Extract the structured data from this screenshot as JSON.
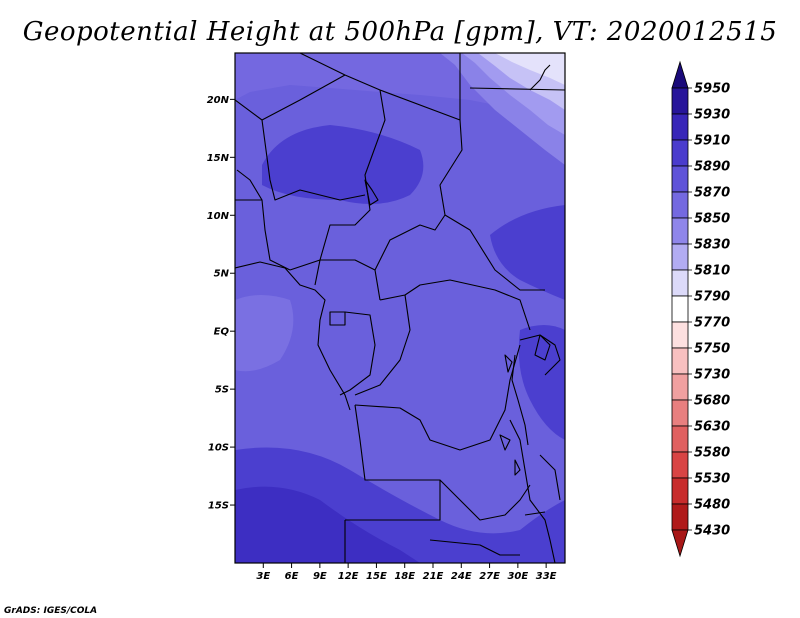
{
  "title": "Geopotential Height at 500hPa [gpm], VT: 2020012515",
  "credit": "GrADS: IGES/COLA",
  "map": {
    "lon_range": [
      0,
      35
    ],
    "lat_range": [
      -20,
      24
    ],
    "lon_ticks": [
      {
        "value": 3,
        "label": "3E"
      },
      {
        "value": 6,
        "label": "6E"
      },
      {
        "value": 9,
        "label": "9E"
      },
      {
        "value": 12,
        "label": "12E"
      },
      {
        "value": 15,
        "label": "15E"
      },
      {
        "value": 18,
        "label": "18E"
      },
      {
        "value": 21,
        "label": "21E"
      },
      {
        "value": 24,
        "label": "24E"
      },
      {
        "value": 27,
        "label": "27E"
      },
      {
        "value": 30,
        "label": "30E"
      },
      {
        "value": 33,
        "label": "33E"
      }
    ],
    "lat_ticks": [
      {
        "value": 20,
        "label": "20N"
      },
      {
        "value": 15,
        "label": "15N"
      },
      {
        "value": 10,
        "label": "10N"
      },
      {
        "value": 5,
        "label": "5N"
      },
      {
        "value": 0,
        "label": "EQ"
      },
      {
        "value": -5,
        "label": "5S"
      },
      {
        "value": -10,
        "label": "10S"
      },
      {
        "value": -15,
        "label": "15S"
      }
    ]
  },
  "colorbar": {
    "levels": [
      {
        "label": "5950",
        "color": "#1a0a7a"
      },
      {
        "label": "5930",
        "color": "#27159a"
      },
      {
        "label": "5910",
        "color": "#3826b8"
      },
      {
        "label": "5890",
        "color": "#4a3ccd"
      },
      {
        "label": "5870",
        "color": "#5f53d8"
      },
      {
        "label": "5850",
        "color": "#7469e0"
      },
      {
        "label": "5830",
        "color": "#8f86ea"
      },
      {
        "label": "5810",
        "color": "#b2acf2"
      },
      {
        "label": "5790",
        "color": "#dcdaf9"
      },
      {
        "label": "5770",
        "color": "#ffffff"
      },
      {
        "label": "5750",
        "color": "#fde0e0"
      },
      {
        "label": "5730",
        "color": "#f8c0c0"
      },
      {
        "label": "5680",
        "color": "#f0a0a0"
      },
      {
        "label": "5630",
        "color": "#e87f7f"
      },
      {
        "label": "5580",
        "color": "#e06060"
      },
      {
        "label": "5530",
        "color": "#d84444"
      },
      {
        "label": "5480",
        "color": "#c82c2c"
      },
      {
        "label": "5430",
        "color": "#b01a1a"
      }
    ],
    "top_arrow_color": "#1a0a7a",
    "bottom_arrow_color": "#a81818"
  }
}
